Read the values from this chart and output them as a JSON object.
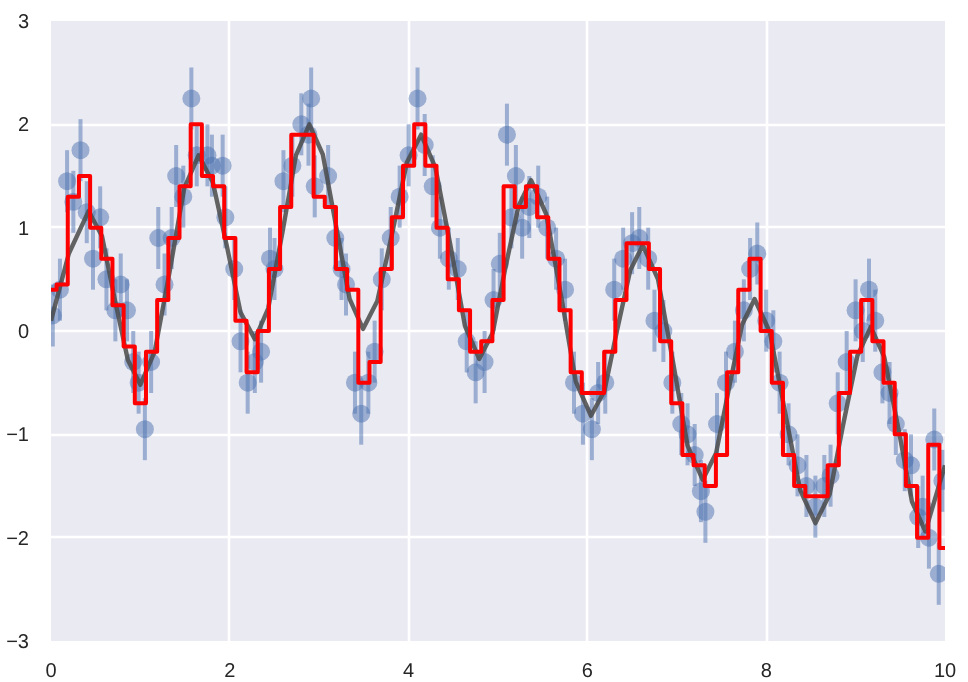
{
  "chart_data": {
    "type": "scatter",
    "xlim": [
      0,
      10
    ],
    "ylim": [
      -3,
      3
    ],
    "xticks": [
      0,
      2,
      4,
      6,
      8,
      10
    ],
    "yticks": [
      -3,
      -2,
      -1,
      0,
      1,
      2,
      3
    ],
    "grid": true,
    "series": [
      {
        "color": "#4c72b0",
        "marker": "circle",
        "x": [
          0.02,
          0.1,
          0.18,
          0.25,
          0.33,
          0.4,
          0.47,
          0.55,
          0.62,
          0.72,
          0.78,
          0.85,
          0.92,
          0.98,
          1.05,
          1.12,
          1.2,
          1.27,
          1.35,
          1.4,
          1.48,
          1.57,
          1.63,
          1.75,
          1.8,
          1.92,
          1.95,
          2.05,
          2.12,
          2.2,
          2.28,
          2.35,
          2.45,
          2.5,
          2.6,
          2.7,
          2.8,
          2.88,
          2.91,
          2.95,
          3.1,
          3.18,
          3.25,
          3.3,
          3.4,
          3.47,
          3.55,
          3.62,
          3.7,
          3.8,
          3.9,
          4.0,
          4.1,
          4.18,
          4.27,
          4.35,
          4.45,
          4.55,
          4.65,
          4.75,
          4.85,
          4.95,
          5.02,
          5.1,
          5.15,
          5.2,
          5.27,
          5.35,
          5.45,
          5.55,
          5.65,
          5.75,
          5.85,
          5.95,
          6.05,
          6.12,
          6.2,
          6.3,
          6.4,
          6.5,
          6.58,
          6.68,
          6.75,
          6.85,
          6.95,
          7.05,
          7.12,
          7.2,
          7.27,
          7.32,
          7.45,
          7.55,
          7.65,
          7.75,
          7.82,
          7.9,
          8.0,
          8.08,
          8.15,
          8.25,
          8.35,
          8.45,
          8.55,
          8.65,
          8.72,
          8.8,
          8.9,
          9.0,
          9.08,
          9.15,
          9.22,
          9.3,
          9.38,
          9.45,
          9.55,
          9.62,
          9.7,
          9.75,
          9.82,
          9.88,
          9.93,
          9.97
        ],
        "values": [
          0.15,
          0.4,
          1.45,
          1.25,
          1.75,
          1.15,
          0.7,
          1.1,
          0.5,
          0.2,
          0.45,
          0.2,
          -0.3,
          -0.5,
          -0.95,
          -0.3,
          0.9,
          0.45,
          0.9,
          1.5,
          1.3,
          2.25,
          1.7,
          1.7,
          1.6,
          1.6,
          1.1,
          0.6,
          -0.1,
          -0.5,
          -0.3,
          -0.2,
          0.7,
          0.6,
          1.45,
          1.6,
          2.0,
          1.9,
          2.25,
          1.4,
          1.5,
          0.9,
          0.6,
          0.45,
          -0.5,
          -0.8,
          -0.5,
          -0.2,
          0.5,
          0.9,
          1.3,
          1.7,
          2.25,
          1.8,
          1.4,
          1.0,
          0.7,
          0.6,
          -0.1,
          -0.4,
          -0.3,
          0.3,
          0.65,
          1.9,
          1.1,
          1.5,
          1.0,
          1.2,
          1.3,
          1.0,
          0.7,
          0.4,
          -0.5,
          -0.8,
          -0.95,
          -0.6,
          -0.5,
          0.4,
          0.7,
          0.85,
          0.9,
          0.7,
          0.1,
          0.0,
          -0.5,
          -0.9,
          -1.0,
          -1.2,
          -1.55,
          -1.75,
          -0.9,
          -0.5,
          -0.2,
          0.2,
          0.6,
          0.75,
          0.1,
          -0.1,
          -0.5,
          -1.0,
          -1.3,
          -1.5,
          -1.7,
          -1.5,
          -1.4,
          -0.7,
          -0.3,
          0.2,
          0.0,
          0.4,
          0.1,
          -0.4,
          -0.6,
          -0.9,
          -1.25,
          -1.3,
          -1.8,
          -1.7,
          -2.0,
          -1.05,
          -2.35,
          -1.45
        ],
        "errors": [
          0.3,
          0.3,
          0.3,
          0.3,
          0.3,
          0.3,
          0.3,
          0.3,
          0.3,
          0.3,
          0.3,
          0.3,
          0.3,
          0.3,
          0.3,
          0.3,
          0.3,
          0.3,
          0.3,
          0.3,
          0.3,
          0.3,
          0.3,
          0.3,
          0.3,
          0.3,
          0.3,
          0.3,
          0.3,
          0.3,
          0.3,
          0.3,
          0.3,
          0.3,
          0.3,
          0.3,
          0.3,
          0.3,
          0.3,
          0.3,
          0.3,
          0.3,
          0.3,
          0.3,
          0.3,
          0.3,
          0.3,
          0.3,
          0.3,
          0.3,
          0.3,
          0.3,
          0.3,
          0.3,
          0.3,
          0.3,
          0.3,
          0.3,
          0.3,
          0.3,
          0.3,
          0.3,
          0.3,
          0.3,
          0.3,
          0.3,
          0.3,
          0.3,
          0.3,
          0.3,
          0.3,
          0.3,
          0.3,
          0.3,
          0.3,
          0.3,
          0.3,
          0.3,
          0.3,
          0.3,
          0.3,
          0.3,
          0.3,
          0.3,
          0.3,
          0.3,
          0.3,
          0.3,
          0.3,
          0.3,
          0.3,
          0.3,
          0.3,
          0.3,
          0.3,
          0.3,
          0.3,
          0.3,
          0.3,
          0.3,
          0.3,
          0.3,
          0.3,
          0.3,
          0.3,
          0.3,
          0.3,
          0.3,
          0.3,
          0.3,
          0.3,
          0.3,
          0.3,
          0.3,
          0.3,
          0.3,
          0.3,
          0.3,
          0.3,
          0.3,
          0.3,
          0.3
        ]
      },
      {
        "type": "line",
        "color": "#4a4a4a",
        "x": [
          0,
          0.2,
          0.42,
          0.57,
          0.71,
          0.86,
          1.0,
          1.16,
          1.33,
          1.49,
          1.65,
          1.81,
          1.97,
          2.12,
          2.28,
          2.43,
          2.59,
          2.74,
          2.89,
          3.04,
          3.19,
          3.34,
          3.49,
          3.65,
          3.82,
          3.98,
          4.14,
          4.3,
          4.47,
          4.63,
          4.79,
          4.94,
          5.08,
          5.23,
          5.37,
          5.54,
          5.71,
          5.87,
          6.04,
          6.19,
          6.33,
          6.48,
          6.62,
          6.79,
          6.96,
          7.12,
          7.29,
          7.44,
          7.58,
          7.73,
          7.87,
          8.04,
          8.21,
          8.38,
          8.55,
          8.71,
          8.86,
          9.02,
          9.17,
          9.32,
          9.48,
          9.63,
          9.78,
          10
        ],
        "values": [
          0.1,
          0.75,
          1.16,
          0.92,
          0.32,
          -0.28,
          -0.52,
          -0.2,
          0.59,
          1.38,
          1.7,
          1.44,
          0.81,
          0.18,
          -0.08,
          0.22,
          0.96,
          1.7,
          2.0,
          1.71,
          1.01,
          0.31,
          0.02,
          0.29,
          0.96,
          1.63,
          1.9,
          1.58,
          0.82,
          0.05,
          -0.27,
          -0.02,
          0.6,
          1.21,
          1.46,
          1.13,
          0.32,
          -0.49,
          -0.82,
          -0.58,
          0.0,
          0.59,
          0.83,
          0.5,
          -0.31,
          -1.11,
          -1.44,
          -1.18,
          -0.57,
          0.06,
          0.31,
          -0.01,
          -0.78,
          -1.54,
          -1.86,
          -1.58,
          -0.91,
          -0.24,
          0.04,
          -0.25,
          -0.95,
          -1.65,
          -1.94,
          -1.3
        ]
      },
      {
        "type": "step",
        "color": "#ff0000",
        "x": [
          0,
          0.125,
          0.25,
          0.375,
          0.5,
          0.625,
          0.75,
          0.875,
          1.0,
          1.125,
          1.25,
          1.375,
          1.5,
          1.625,
          1.75,
          1.875,
          2.0,
          2.125,
          2.25,
          2.375,
          2.5,
          2.625,
          2.75,
          2.875,
          3.0,
          3.125,
          3.25,
          3.375,
          3.5,
          3.625,
          3.75,
          3.875,
          4.0,
          4.125,
          4.25,
          4.375,
          4.5,
          4.625,
          4.75,
          4.875,
          5.0,
          5.125,
          5.25,
          5.375,
          5.5,
          5.625,
          5.75,
          5.875,
          6.0,
          6.125,
          6.25,
          6.375,
          6.5,
          6.625,
          6.75,
          6.875,
          7.0,
          7.125,
          7.25,
          7.375,
          7.5,
          7.625,
          7.75,
          7.875,
          8.0,
          8.125,
          8.25,
          8.375,
          8.5,
          8.625,
          8.75,
          8.875,
          9.0,
          9.125,
          9.25,
          9.375,
          9.5,
          9.625,
          9.75,
          9.875,
          10.0
        ],
        "values": [
          0.4,
          0.45,
          1.3,
          1.5,
          1.0,
          0.7,
          0.25,
          -0.15,
          -0.7,
          -0.2,
          0.3,
          0.9,
          1.4,
          2.0,
          1.5,
          1.4,
          0.9,
          0.1,
          -0.4,
          0.0,
          0.6,
          1.2,
          1.9,
          1.9,
          1.3,
          1.2,
          0.6,
          0.4,
          -0.5,
          -0.3,
          0.6,
          1.1,
          1.6,
          2.0,
          1.6,
          1.0,
          0.5,
          0.2,
          -0.2,
          -0.1,
          0.3,
          1.4,
          1.2,
          1.4,
          1.1,
          0.7,
          0.2,
          -0.4,
          -0.6,
          -0.6,
          -0.2,
          0.3,
          0.85,
          0.85,
          0.6,
          -0.1,
          -0.7,
          -1.2,
          -1.3,
          -1.5,
          -1.2,
          -0.4,
          0.4,
          0.7,
          0.0,
          -0.5,
          -1.2,
          -1.5,
          -1.6,
          -1.6,
          -1.3,
          -0.6,
          -0.2,
          0.3,
          -0.1,
          -0.5,
          -1.0,
          -1.5,
          -2.0,
          -1.1,
          -2.1
        ]
      }
    ]
  }
}
